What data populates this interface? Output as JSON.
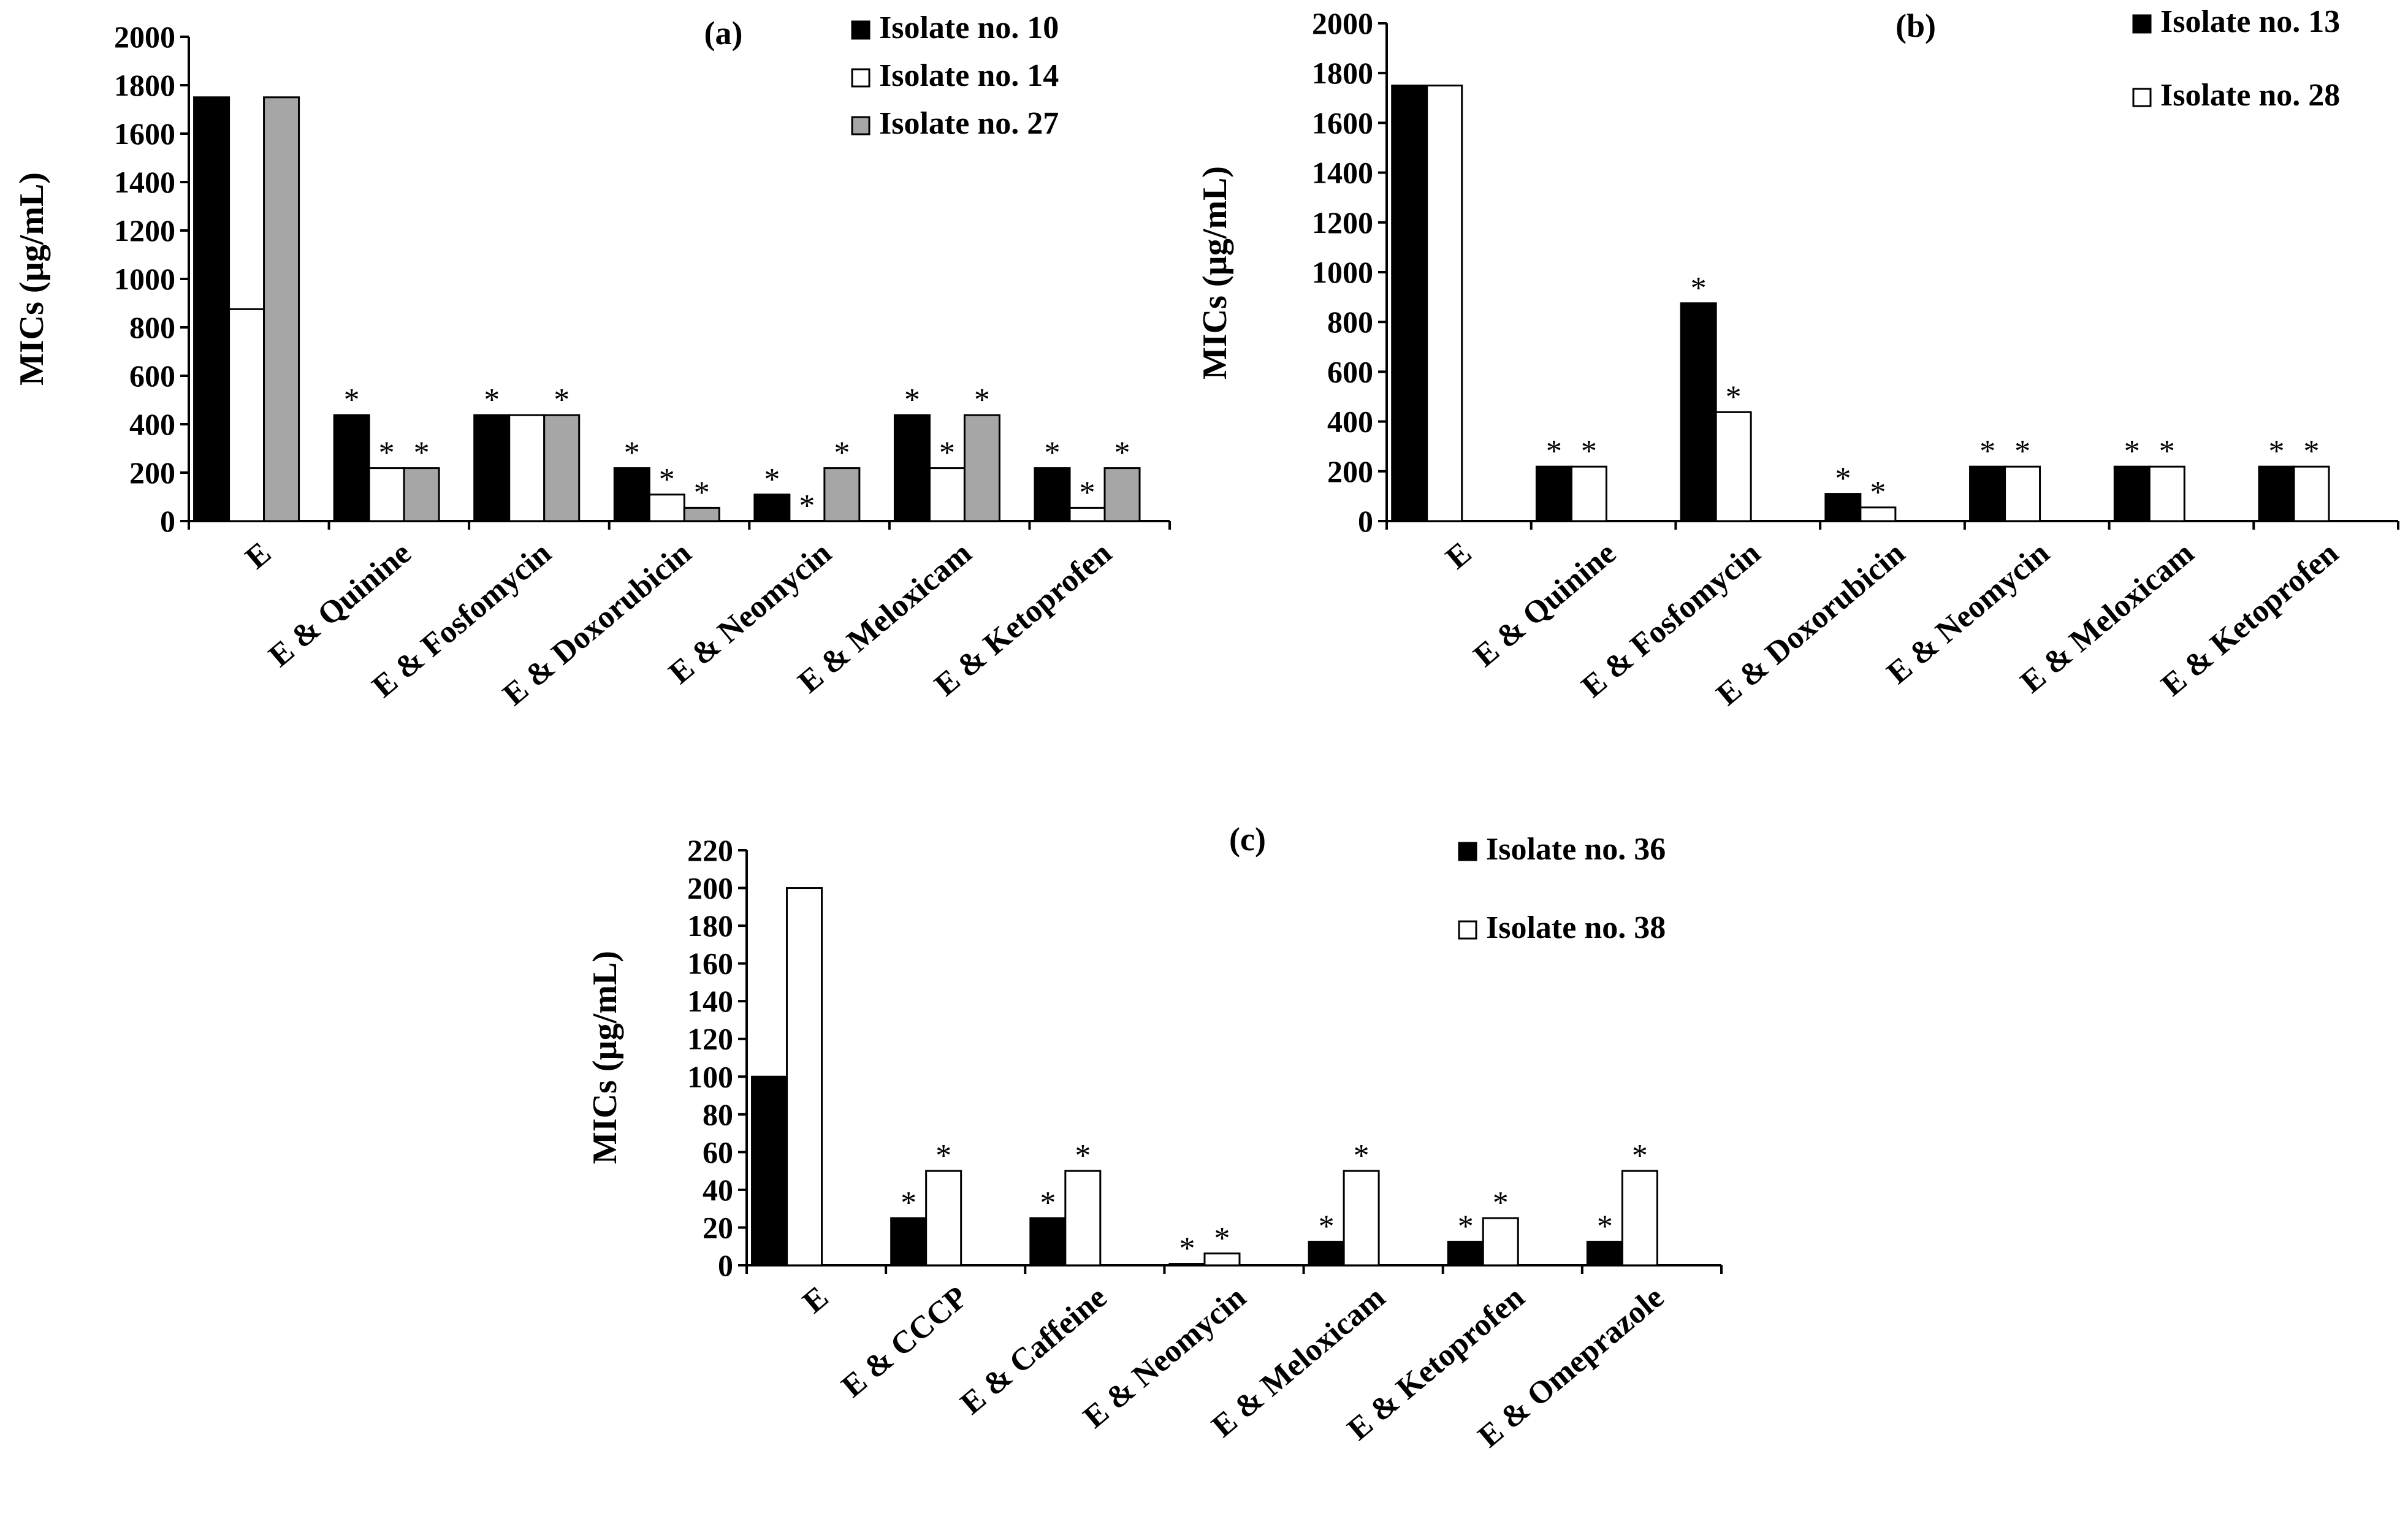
{
  "chart_data": [
    {
      "type": "bar",
      "panel_label": "(a)",
      "ylabel": "MICs (µg/mL)",
      "xlabel": "",
      "ylim": [
        0,
        2000
      ],
      "yticks": [
        0,
        200,
        400,
        600,
        800,
        1000,
        1200,
        1400,
        1600,
        1800,
        2000
      ],
      "categories": [
        "E",
        "E & Quinine",
        "E & Fosfomycin",
        "E & Doxorubicin",
        "E & Neomycin",
        "E & Meloxicam",
        "E & Ketoprofen"
      ],
      "series": [
        {
          "name": "Isolate no. 10",
          "color": "#000000",
          "values": [
            1750,
            437.5,
            437.5,
            218.75,
            109.375,
            437.5,
            218.75
          ],
          "significant": [
            false,
            true,
            true,
            true,
            true,
            true,
            true
          ]
        },
        {
          "name": "Isolate no. 14",
          "color": "#ffffff",
          "values": [
            875,
            218.75,
            437.5,
            109.375,
            0,
            218.75,
            54.6875
          ],
          "significant": [
            false,
            true,
            false,
            true,
            true,
            true,
            true
          ]
        },
        {
          "name": "Isolate no. 27",
          "color": "#a6a6a6",
          "values": [
            1750,
            218.75,
            437.5,
            54.6875,
            218.75,
            437.5,
            218.75
          ],
          "significant": [
            false,
            true,
            true,
            true,
            true,
            true,
            true
          ]
        }
      ],
      "significance_marker": "*",
      "legend_position": "top-right"
    },
    {
      "type": "bar",
      "panel_label": "(b)",
      "ylabel": "MICs (µg/mL)",
      "xlabel": "",
      "ylim": [
        0,
        2000
      ],
      "yticks": [
        0,
        200,
        400,
        600,
        800,
        1000,
        1200,
        1400,
        1600,
        1800,
        2000
      ],
      "categories": [
        "E",
        "E & Quinine",
        "E & Fosfomycin",
        "E & Doxorubicin",
        "E & Neomycin",
        "E & Meloxicam",
        "E & Ketoprofen"
      ],
      "series": [
        {
          "name": "Isolate no. 13",
          "color": "#000000",
          "values": [
            1750,
            218.75,
            875,
            109.375,
            218.75,
            218.75,
            218.75
          ],
          "significant": [
            false,
            true,
            true,
            true,
            true,
            true,
            true
          ]
        },
        {
          "name": "Isolate no. 28",
          "color": "#ffffff",
          "values": [
            1750,
            218.75,
            437.5,
            54.6875,
            218.75,
            218.75,
            218.75
          ],
          "significant": [
            false,
            true,
            true,
            true,
            true,
            true,
            true
          ]
        }
      ],
      "significance_marker": "*",
      "legend_position": "top-right"
    },
    {
      "type": "bar",
      "panel_label": "(c)",
      "ylabel": "MICs (µg/mL)",
      "xlabel": "",
      "ylim": [
        0,
        220
      ],
      "yticks": [
        0,
        20,
        40,
        60,
        80,
        100,
        120,
        140,
        160,
        180,
        200,
        220
      ],
      "categories": [
        "E",
        "E & CCCP",
        "E & Caffeine",
        "E & Neomycin",
        "E & Meloxicam",
        "E & Ketoprofen",
        "E & Omeprazole"
      ],
      "series": [
        {
          "name": "Isolate no. 36",
          "color": "#000000",
          "values": [
            100,
            25,
            25,
            0.8,
            12.5,
            12.5,
            12.5
          ],
          "significant": [
            false,
            true,
            true,
            true,
            true,
            true,
            true
          ]
        },
        {
          "name": "Isolate no. 38",
          "color": "#ffffff",
          "values": [
            200,
            50,
            50,
            6.25,
            50,
            25,
            50
          ],
          "significant": [
            false,
            true,
            true,
            true,
            true,
            true,
            true
          ]
        }
      ],
      "significance_marker": "*",
      "legend_position": "top-right"
    }
  ]
}
